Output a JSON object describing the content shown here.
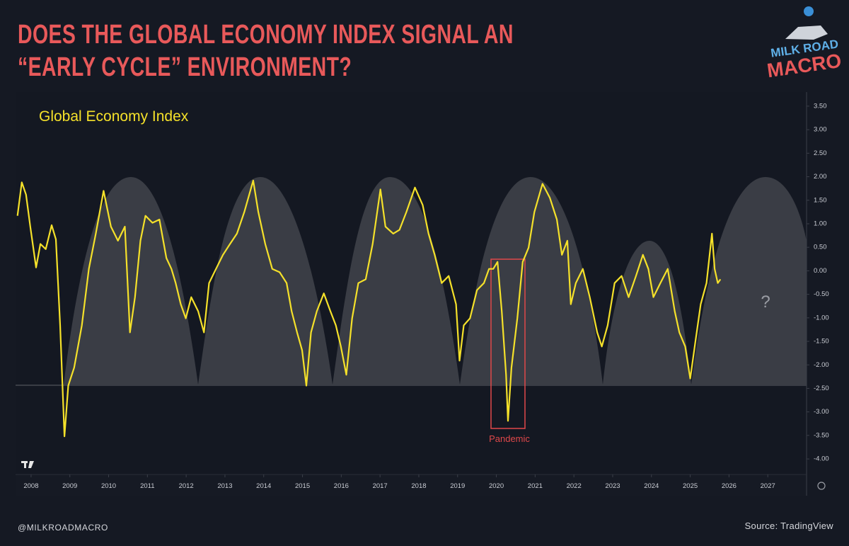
{
  "chart_data": {
    "type": "line",
    "title": "DOES THE GLOBAL ECONOMY INDEX SIGNAL AN “EARLY CYCLE” ENVIRONMENT?",
    "x": [
      2007.65,
      2007.76,
      2007.87,
      2007.98,
      2008.13,
      2008.24,
      2008.38,
      2008.53,
      2008.64,
      2008.75,
      2008.86,
      2008.96,
      2009.11,
      2009.31,
      2009.49,
      2009.67,
      2009.87,
      2010.06,
      2010.24,
      2010.42,
      2010.55,
      2010.68,
      2010.82,
      2010.95,
      2011.13,
      2011.31,
      2011.49,
      2011.62,
      2011.73,
      2011.86,
      2011.99,
      2012.13,
      2012.31,
      2012.46,
      2012.59,
      2012.77,
      2012.95,
      2013.13,
      2013.31,
      2013.5,
      2013.73,
      2013.86,
      2014.04,
      2014.22,
      2014.41,
      2014.59,
      2014.72,
      2014.86,
      2014.99,
      2015.1,
      2015.22,
      2015.37,
      2015.55,
      2015.72,
      2015.86,
      2015.99,
      2016.13,
      2016.28,
      2016.44,
      2016.63,
      2016.81,
      2017.01,
      2017.14,
      2017.34,
      2017.5,
      2017.68,
      2017.9,
      2018.1,
      2018.25,
      2018.41,
      2018.59,
      2018.77,
      2018.96,
      2019.05,
      2019.16,
      2019.32,
      2019.5,
      2019.68,
      2019.81,
      2019.92,
      2020.03,
      2020.14,
      2020.25,
      2020.3,
      2020.39,
      2020.54,
      2020.68,
      2020.83,
      2020.98,
      2021.19,
      2021.38,
      2021.56,
      2021.69,
      2021.83,
      2021.92,
      2022.05,
      2022.23,
      2022.41,
      2022.6,
      2022.72,
      2022.87,
      2023.05,
      2023.23,
      2023.41,
      2023.6,
      2023.78,
      2023.92,
      2024.05,
      2024.23,
      2024.42,
      2024.6,
      2024.72,
      2024.87,
      2025.0,
      2025.14,
      2025.27,
      2025.42,
      2025.56,
      2025.63,
      2025.71,
      2025.78
    ],
    "series": [
      {
        "name": "Global Economy Index",
        "color": "#f5e12a",
        "values": [
          1.17,
          1.88,
          1.62,
          0.94,
          0.07,
          0.57,
          0.46,
          0.97,
          0.67,
          -1.16,
          -3.52,
          -2.44,
          -2.06,
          -1.16,
          0.04,
          0.79,
          1.7,
          0.94,
          0.64,
          0.94,
          -1.31,
          -0.56,
          0.64,
          1.17,
          1.02,
          1.09,
          0.27,
          0.04,
          -0.26,
          -0.71,
          -1.01,
          -0.56,
          -0.86,
          -1.31,
          -0.26,
          0.04,
          0.34,
          0.57,
          0.79,
          1.25,
          1.92,
          1.25,
          0.57,
          0.04,
          -0.03,
          -0.26,
          -0.86,
          -1.31,
          -1.69,
          -2.44,
          -1.31,
          -0.86,
          -0.48,
          -0.86,
          -1.16,
          -1.61,
          -2.21,
          -1.01,
          -0.26,
          -0.18,
          0.57,
          1.73,
          0.94,
          0.79,
          0.87,
          1.25,
          1.77,
          1.4,
          0.79,
          0.34,
          -0.26,
          -0.11,
          -0.71,
          -1.91,
          -1.16,
          -1.01,
          -0.41,
          -0.26,
          0.04,
          0.04,
          0.19,
          -0.86,
          -2.21,
          -3.19,
          -2.06,
          -1.01,
          0.19,
          0.49,
          1.25,
          1.85,
          1.55,
          1.09,
          0.34,
          0.64,
          -0.71,
          -0.26,
          0.04,
          -0.56,
          -1.31,
          -1.61,
          -1.16,
          -0.26,
          -0.11,
          -0.56,
          -0.11,
          0.34,
          0.04,
          -0.56,
          -0.26,
          0.04,
          -0.86,
          -1.31,
          -1.61,
          -2.29,
          -1.46,
          -0.71,
          -0.26,
          0.79,
          0.04,
          -0.26,
          -0.18
        ]
      }
    ],
    "xlim": [
      2007.6,
      2028.0
    ],
    "xticks": [
      2008,
      2009,
      2010,
      2011,
      2012,
      2013,
      2014,
      2015,
      2016,
      2017,
      2018,
      2019,
      2020,
      2021,
      2022,
      2023,
      2024,
      2025,
      2026,
      2027
    ],
    "ylim": [
      -4.3,
      3.8
    ],
    "yticks": [
      {
        "value": 3.5,
        "label": "3.50"
      },
      {
        "value": 3,
        "label": "3.00"
      },
      {
        "value": 2.5,
        "label": "2.50"
      },
      {
        "value": 2,
        "label": "2.00"
      },
      {
        "value": 1.5,
        "label": "1.50"
      },
      {
        "value": 1,
        "label": "1.00"
      },
      {
        "value": 0.5,
        "label": "0.50"
      },
      {
        "value": 0,
        "label": "0.00"
      },
      {
        "value": -0.5,
        "label": "-0.50"
      },
      {
        "value": -1,
        "label": "-1.00"
      },
      {
        "value": -1.5,
        "label": "-1.50"
      },
      {
        "value": -2,
        "label": "-2.00"
      },
      {
        "value": -2.5,
        "label": "-2.50"
      },
      {
        "value": -3,
        "label": "-3.00"
      },
      {
        "value": -3.5,
        "label": "-3.50"
      },
      {
        "value": -4,
        "label": "-4.00"
      }
    ],
    "grid": false,
    "annotations": [
      "Pandemic",
      "?"
    ]
  },
  "branding": {
    "logo": [
      "MILK ROAD",
      "MACRO"
    ],
    "handle": "@MILKROADMACRO",
    "source": "Source: TradingView"
  }
}
